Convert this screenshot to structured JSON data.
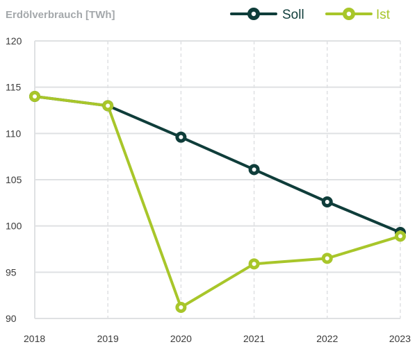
{
  "chart_data": {
    "type": "line",
    "ylabel": "Erdölverbrauch [TWh]",
    "xlabel": "",
    "categories": [
      "2018",
      "2019",
      "2020",
      "2021",
      "2022",
      "2023"
    ],
    "ylim": [
      90,
      120
    ],
    "yticks": [
      90,
      95,
      100,
      105,
      110,
      115,
      120
    ],
    "grid": true,
    "legend_position": "top-right",
    "series": [
      {
        "name": "Soll",
        "color": "#0f3d3a",
        "values": [
          114.0,
          113.0,
          109.6,
          106.1,
          102.6,
          99.3
        ]
      },
      {
        "name": "Ist",
        "color": "#a8c62a",
        "values": [
          114.0,
          113.0,
          91.2,
          95.9,
          96.5,
          98.9
        ]
      }
    ],
    "colors": {
      "grid": "#dfe1e3",
      "axis_line": "#dfe1e3",
      "title": "#a4a8ab",
      "tick": "#3a3a3a"
    }
  }
}
